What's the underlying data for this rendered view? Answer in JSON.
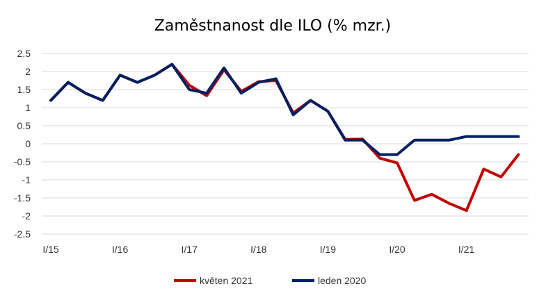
{
  "chart_data": {
    "type": "line",
    "title": "Zaměstnanost dle ILO (% mzr.)",
    "xlabel": "",
    "ylabel": "",
    "ylim": [
      -2.5,
      2.5
    ],
    "yticks": [
      "2.5",
      "2",
      "1.5",
      "1",
      "0.5",
      "0",
      "-0.5",
      "-1",
      "-1.5",
      "-2",
      "-2.5"
    ],
    "x": [
      "I/15",
      "II/15",
      "III/15",
      "IV/15",
      "I/16",
      "II/16",
      "III/16",
      "IV/16",
      "I/17",
      "II/17",
      "III/17",
      "IV/17",
      "I/18",
      "II/18",
      "III/18",
      "IV/18",
      "I/19",
      "II/19",
      "III/19",
      "IV/19",
      "I/20",
      "II/20",
      "III/20",
      "IV/20",
      "I/21",
      "II/21",
      "III/21",
      "IV/21"
    ],
    "xtick_labels": [
      "I/15",
      "I/16",
      "I/17",
      "I/18",
      "I/19",
      "I/20",
      "I/21"
    ],
    "grid": true,
    "legend_position": "bottom",
    "series": [
      {
        "name": "květen 2021",
        "color": "#c00000",
        "values": [
          1.2,
          1.7,
          1.4,
          1.2,
          1.9,
          1.7,
          1.9,
          2.2,
          1.62,
          1.33,
          2.05,
          1.45,
          1.72,
          1.75,
          0.85,
          1.2,
          0.9,
          0.12,
          0.13,
          -0.4,
          -0.53,
          -1.57,
          -1.4,
          -1.65,
          -1.85,
          -0.7,
          -0.92,
          -0.3
        ]
      },
      {
        "name": "leden 2020",
        "color": "#002060",
        "values": [
          1.2,
          1.7,
          1.4,
          1.2,
          1.9,
          1.7,
          1.9,
          2.2,
          1.5,
          1.4,
          2.1,
          1.4,
          1.7,
          1.8,
          0.8,
          1.2,
          0.9,
          0.1,
          0.1,
          -0.3,
          -0.3,
          0.1,
          0.1,
          0.1,
          0.2,
          0.2,
          0.2,
          0.2
        ]
      }
    ]
  }
}
